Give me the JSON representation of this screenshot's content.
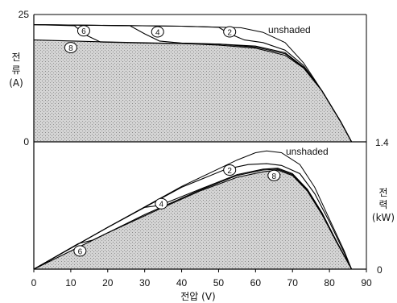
{
  "chart_data": [
    {
      "type": "line",
      "panel": "top",
      "ylabel": "전류 (A)",
      "ylabel_chars": [
        "전",
        "류",
        "(A)"
      ],
      "ylim": [
        0,
        25
      ],
      "y_ticks": [
        "25",
        "0"
      ],
      "y_tick_values": [
        25,
        0
      ],
      "xlim": [
        0,
        90
      ],
      "annotation": "unshaded",
      "shaded_fill": "#bdbdbd",
      "series": [
        {
          "name": "unshaded",
          "points": [
            [
              0,
              23
            ],
            [
              40,
              22.7
            ],
            [
              56,
              22.4
            ],
            [
              62,
              21.5
            ],
            [
              68,
              19.5
            ],
            [
              73,
              15.5
            ],
            [
              78,
              10
            ],
            [
              83,
              4
            ],
            [
              86,
              0
            ]
          ]
        },
        {
          "name": "②",
          "points": [
            [
              0,
              23
            ],
            [
              40,
              22.7
            ],
            [
              50,
              22.5
            ],
            [
              53,
              21.2
            ],
            [
              57,
              20
            ],
            [
              62,
              19.5
            ],
            [
              68,
              18
            ],
            [
              73,
              15
            ],
            [
              78,
              10
            ],
            [
              83,
              4
            ],
            [
              86,
              0
            ]
          ]
        },
        {
          "name": "④",
          "points": [
            [
              0,
              23
            ],
            [
              26,
              22.8
            ],
            [
              30,
              21.2
            ],
            [
              34,
              19.8
            ],
            [
              40,
              19.4
            ],
            [
              50,
              19.2
            ],
            [
              60,
              18.8
            ],
            [
              68,
              17.5
            ],
            [
              73,
              14.7
            ],
            [
              78,
              10
            ],
            [
              83,
              4
            ],
            [
              86,
              0
            ]
          ]
        },
        {
          "name": "⑥",
          "points": [
            [
              0,
              23
            ],
            [
              11,
              22.8
            ],
            [
              14,
              21
            ],
            [
              18,
              19.6
            ],
            [
              30,
              19.4
            ],
            [
              50,
              19.2
            ],
            [
              60,
              18.6
            ],
            [
              68,
              17.3
            ],
            [
              73,
              14.6
            ],
            [
              78,
              10
            ],
            [
              83,
              4
            ],
            [
              86,
              0
            ]
          ]
        },
        {
          "name": "⑧",
          "points": [
            [
              0,
              20
            ],
            [
              20,
              19.6
            ],
            [
              40,
              19.3
            ],
            [
              50,
              19
            ],
            [
              60,
              18.4
            ],
            [
              68,
              17
            ],
            [
              73,
              14.5
            ],
            [
              78,
              10
            ],
            [
              83,
              4
            ],
            [
              86,
              0
            ]
          ]
        }
      ],
      "labels": [
        {
          "text": "②",
          "x": 53,
          "y": 21.6
        },
        {
          "text": "④",
          "x": 33.5,
          "y": 21.6
        },
        {
          "text": "⑥",
          "x": 13.5,
          "y": 21.8
        },
        {
          "text": "⑧",
          "x": 10,
          "y": 18.5
        }
      ]
    },
    {
      "type": "line",
      "panel": "bottom",
      "ylabel": "전력 (kW)",
      "ylabel_chars": [
        "전",
        "력",
        "(kW)"
      ],
      "ylim": [
        0,
        1.4
      ],
      "y_ticks": [
        "1.4",
        "0"
      ],
      "y_tick_values": [
        1.4,
        0
      ],
      "xlim": [
        0,
        90
      ],
      "x_ticks": [
        "0",
        "10",
        "20",
        "30",
        "40",
        "50",
        "60",
        "70",
        "80",
        "90"
      ],
      "x_tick_values": [
        0,
        10,
        20,
        30,
        40,
        50,
        60,
        70,
        80,
        90
      ],
      "xlabel": "전압 (V)",
      "annotation": "unshaded",
      "shaded_fill": "#bdbdbd",
      "series": [
        {
          "name": "unshaded",
          "points": [
            [
              0,
              0
            ],
            [
              20,
              0.46
            ],
            [
              40,
              0.91
            ],
            [
              55,
              1.2
            ],
            [
              60,
              1.28
            ],
            [
              63,
              1.3
            ],
            [
              67,
              1.28
            ],
            [
              72,
              1.15
            ],
            [
              76,
              0.9
            ],
            [
              80,
              0.55
            ],
            [
              84,
              0.2
            ],
            [
              86,
              0
            ]
          ]
        },
        {
          "name": "②",
          "points": [
            [
              0,
              0
            ],
            [
              20,
              0.46
            ],
            [
              40,
              0.9
            ],
            [
              52,
              1.1
            ],
            [
              58,
              1.15
            ],
            [
              63,
              1.16
            ],
            [
              67,
              1.14
            ],
            [
              72,
              1.05
            ],
            [
              76,
              0.83
            ],
            [
              80,
              0.52
            ],
            [
              84,
              0.18
            ],
            [
              86,
              0
            ]
          ]
        },
        {
          "name": "④",
          "points": [
            [
              0,
              0
            ],
            [
              20,
              0.46
            ],
            [
              30,
              0.68
            ],
            [
              34,
              0.7
            ],
            [
              45,
              0.88
            ],
            [
              55,
              1.04
            ],
            [
              62,
              1.1
            ],
            [
              66,
              1.11
            ],
            [
              70,
              1.05
            ],
            [
              74,
              0.88
            ],
            [
              78,
              0.62
            ],
            [
              82,
              0.3
            ],
            [
              86,
              0
            ]
          ]
        },
        {
          "name": "⑥",
          "points": [
            [
              0,
              0
            ],
            [
              12,
              0.28
            ],
            [
              16,
              0.32
            ],
            [
              30,
              0.6
            ],
            [
              45,
              0.87
            ],
            [
              55,
              1.03
            ],
            [
              62,
              1.09
            ],
            [
              66,
              1.1
            ],
            [
              70,
              1.04
            ],
            [
              74,
              0.87
            ],
            [
              78,
              0.61
            ],
            [
              82,
              0.3
            ],
            [
              86,
              0
            ]
          ]
        },
        {
          "name": "⑧",
          "points": [
            [
              0,
              0
            ],
            [
              20,
              0.4
            ],
            [
              35,
              0.68
            ],
            [
              45,
              0.86
            ],
            [
              55,
              1.01
            ],
            [
              62,
              1.07
            ],
            [
              66,
              1.09
            ],
            [
              70,
              1.03
            ],
            [
              74,
              0.86
            ],
            [
              78,
              0.6
            ],
            [
              82,
              0.29
            ],
            [
              86,
              0
            ]
          ]
        }
      ],
      "labels": [
        {
          "text": "②",
          "x": 53,
          "y": 1.09
        },
        {
          "text": "④",
          "x": 34.5,
          "y": 0.72
        },
        {
          "text": "⑥",
          "x": 12.5,
          "y": 0.2
        },
        {
          "text": "⑧",
          "x": 65,
          "y": 1.03
        }
      ]
    }
  ]
}
